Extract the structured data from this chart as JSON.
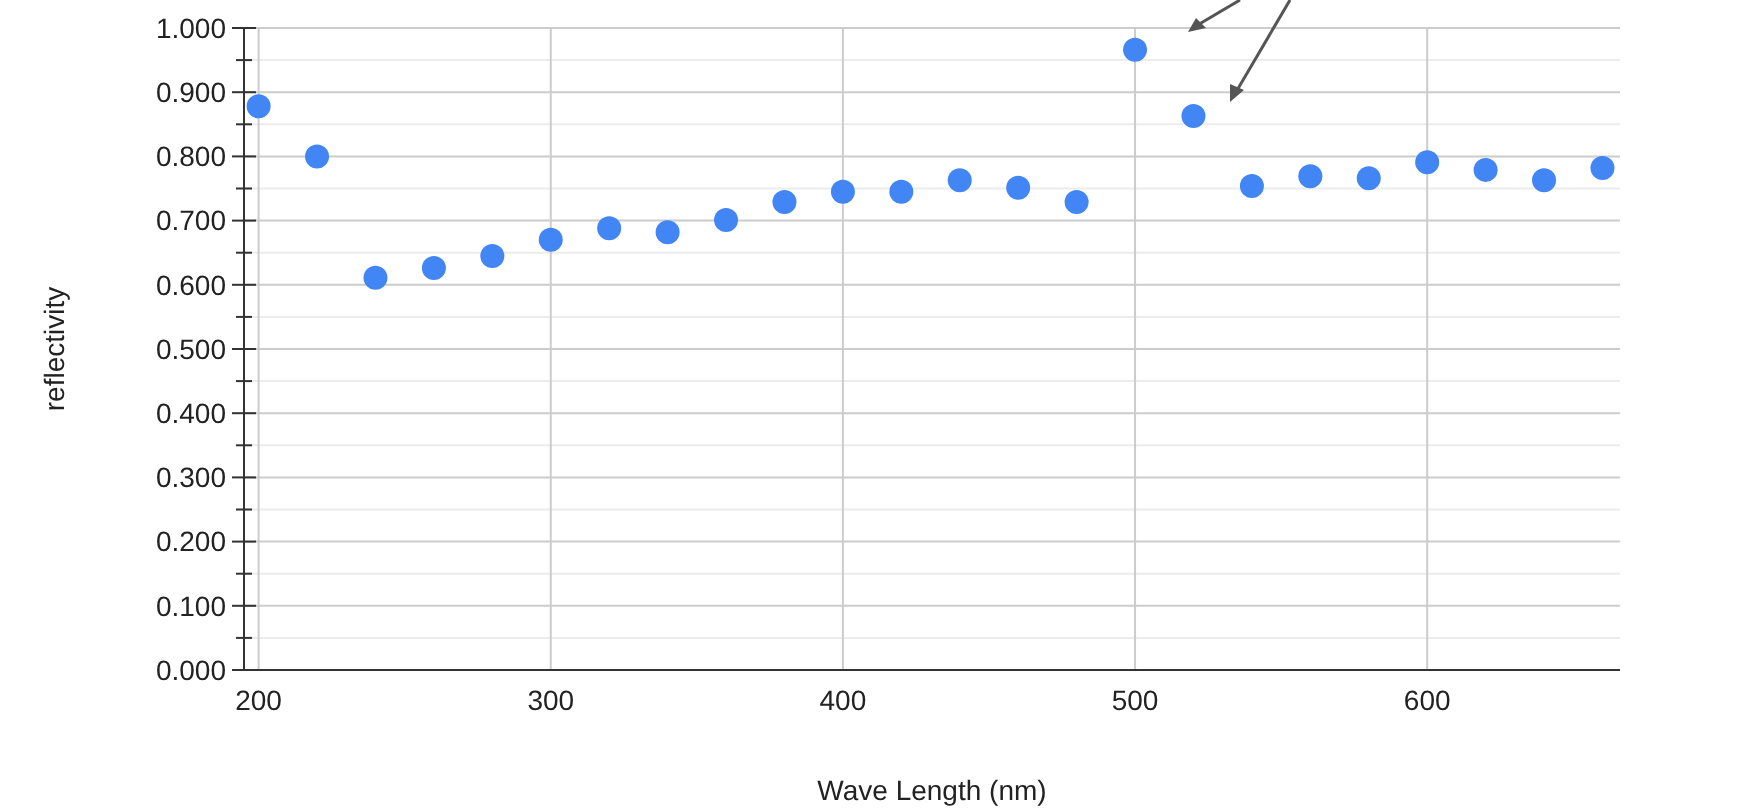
{
  "chart_data": {
    "type": "scatter",
    "xlabel": "Wave Length (nm)",
    "ylabel": "reflectivity",
    "x": [
      200,
      220,
      240,
      260,
      280,
      300,
      320,
      340,
      360,
      380,
      400,
      420,
      440,
      460,
      480,
      500,
      520,
      540,
      560,
      580,
      600,
      620,
      640,
      660
    ],
    "series": [
      {
        "color": "#4285f4",
        "values": [
          0.878,
          0.8,
          0.611,
          0.626,
          0.645,
          0.67,
          0.688,
          0.682,
          0.701,
          0.729,
          0.745,
          0.745,
          0.763,
          0.751,
          0.729,
          0.966,
          0.863,
          0.754,
          0.769,
          0.766,
          0.791,
          0.779,
          0.763,
          0.782
        ]
      }
    ],
    "xlim": [
      195,
      666
    ],
    "xticks": [
      200,
      300,
      400,
      500,
      600
    ],
    "ylim": [
      0,
      1
    ],
    "yticks": [
      {
        "value": 0,
        "label": "0.000"
      },
      {
        "value": 0.05,
        "label": null
      },
      {
        "value": 0.1,
        "label": "0.100"
      },
      {
        "value": 0.15,
        "label": null
      },
      {
        "value": 0.2,
        "label": "0.200"
      },
      {
        "value": 0.25,
        "label": null
      },
      {
        "value": 0.3,
        "label": "0.300"
      },
      {
        "value": 0.35,
        "label": null
      },
      {
        "value": 0.4,
        "label": "0.400"
      },
      {
        "value": 0.45,
        "label": null
      },
      {
        "value": 0.5,
        "label": "0.500"
      },
      {
        "value": 0.55,
        "label": null
      },
      {
        "value": 0.6,
        "label": "0.600"
      },
      {
        "value": 0.65,
        "label": null
      },
      {
        "value": 0.7,
        "label": "0.700"
      },
      {
        "value": 0.75,
        "label": null
      },
      {
        "value": 0.8,
        "label": "0.800"
      },
      {
        "value": 0.85,
        "label": null
      },
      {
        "value": 0.9,
        "label": "0.900"
      },
      {
        "value": 0.95,
        "label": null
      },
      {
        "value": 1,
        "label": "1.000"
      }
    ],
    "grid": true,
    "marker": "circle"
  }
}
